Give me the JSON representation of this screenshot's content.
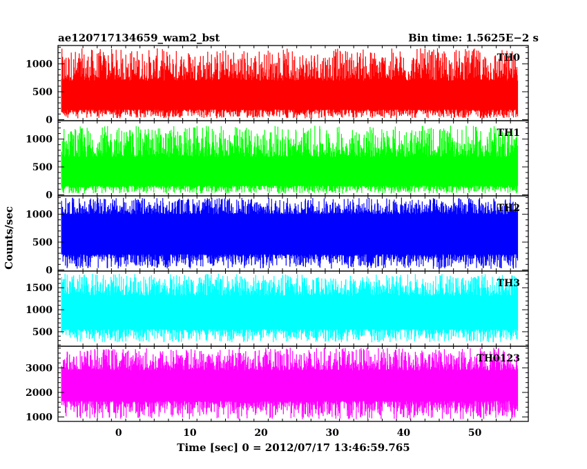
{
  "chart_data": {
    "type": "line",
    "title_left": "ae120717134659_wam2_bst",
    "title_right": "Bin time: 1.5625E−2 s",
    "xlabel": "Time [sec] 0 = 2012/07/17 13:46:59.765",
    "ylabel": "Counts/sec",
    "xlim": [
      -8.5,
      57.5
    ],
    "x_ticks": [
      0,
      10,
      20,
      30,
      40,
      50
    ],
    "x_tick_labels": [
      "0",
      "10",
      "20",
      "30",
      "40",
      "50"
    ],
    "x_data_range": [
      -8,
      56
    ],
    "bin_time": 0.015625,
    "panels": [
      {
        "name": "TH0",
        "color": "#ff0000",
        "ylim": [
          -20,
          1330
        ],
        "yticks": [
          0,
          500,
          1000
        ],
        "ytick_labels": [
          "0",
          "500",
          "1000"
        ],
        "typical_low": 180,
        "typical_high": 700,
        "min": 20,
        "max": 1280
      },
      {
        "name": "TH1",
        "color": "#00ff00",
        "ylim": [
          -20,
          1330
        ],
        "yticks": [
          0,
          500,
          1000
        ],
        "ytick_labels": [
          "0",
          "500",
          "1000"
        ],
        "typical_low": 160,
        "typical_high": 680,
        "min": 20,
        "max": 1240
      },
      {
        "name": "TH2",
        "color": "#0000ff",
        "ylim": [
          -20,
          1330
        ],
        "yticks": [
          0,
          500,
          1000
        ],
        "ytick_labels": [
          "0",
          "500",
          "1000"
        ],
        "typical_low": 280,
        "typical_high": 1000,
        "min": 20,
        "max": 1300
      },
      {
        "name": "TH3",
        "color": "#00ffff",
        "ylim": [
          170,
          1880
        ],
        "yticks": [
          500,
          1000,
          1500
        ],
        "ytick_labels": [
          "500",
          "1000",
          "1500"
        ],
        "typical_low": 560,
        "typical_high": 1320,
        "min": 260,
        "max": 1820
      },
      {
        "name": "TH0123",
        "color": "#ff00ff",
        "ylim": [
          820,
          3880
        ],
        "yticks": [
          1000,
          2000,
          3000
        ],
        "ytick_labels": [
          "1000",
          "2000",
          "3000"
        ],
        "typical_low": 1650,
        "typical_high": 2900,
        "min": 900,
        "max": 3820
      }
    ]
  }
}
